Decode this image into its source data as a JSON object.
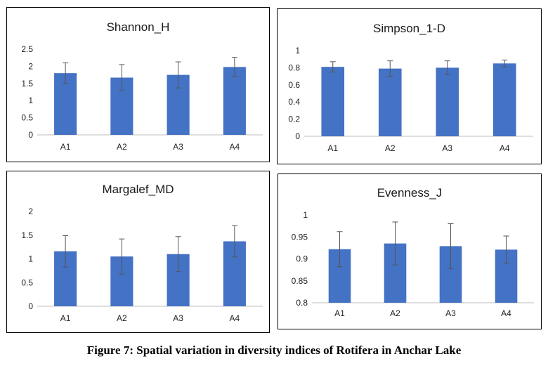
{
  "caption": "Figure 7: Spatial variation in diversity indices of Rotifera in Anchar Lake",
  "chart_data": [
    {
      "type": "bar",
      "title": "Shannon_H",
      "categories": [
        "A1",
        "A2",
        "A3",
        "A4"
      ],
      "values": [
        1.8,
        1.67,
        1.75,
        1.98
      ],
      "errors": [
        0.3,
        0.38,
        0.38,
        0.28
      ],
      "ylim": [
        0,
        2.5
      ],
      "yticks": [
        0,
        0.5,
        1,
        1.5,
        2,
        2.5
      ],
      "ytick_labels": [
        "0",
        "0.5",
        "1",
        "1.5",
        "2",
        "2.5"
      ],
      "bar_color": "#4472C4",
      "grid": false
    },
    {
      "type": "bar",
      "title": "Simpson_1-D",
      "categories": [
        "A1",
        "A2",
        "A3",
        "A4"
      ],
      "values": [
        0.81,
        0.79,
        0.8,
        0.85
      ],
      "errors": [
        0.06,
        0.09,
        0.08,
        0.04
      ],
      "ylim": [
        0,
        1
      ],
      "yticks": [
        0,
        0.2,
        0.4,
        0.6,
        0.8,
        1
      ],
      "ytick_labels": [
        "0",
        "0.2",
        "0.4",
        "0.6",
        "0.8",
        "1"
      ],
      "bar_color": "#4472C4",
      "grid": false
    },
    {
      "type": "bar",
      "title": "Margalef_MD",
      "categories": [
        "A1",
        "A2",
        "A3",
        "A4"
      ],
      "values": [
        1.16,
        1.05,
        1.1,
        1.37
      ],
      "errors": [
        0.33,
        0.37,
        0.37,
        0.33
      ],
      "ylim": [
        0,
        2
      ],
      "yticks": [
        0,
        0.5,
        1,
        1.5,
        2
      ],
      "ytick_labels": [
        "0",
        "0.5",
        "1",
        "1.5",
        "2"
      ],
      "bar_color": "#4472C4",
      "grid": false
    },
    {
      "type": "bar",
      "title": "Evenness_J",
      "categories": [
        "A1",
        "A2",
        "A3",
        "A4"
      ],
      "values": [
        0.922,
        0.935,
        0.929,
        0.921
      ],
      "errors": [
        0.04,
        0.049,
        0.051,
        0.031
      ],
      "ylim": [
        0.8,
        1
      ],
      "yticks": [
        0.8,
        0.85,
        0.9,
        0.95,
        1
      ],
      "ytick_labels": [
        "0.8",
        "0.85",
        "0.9",
        "0.95",
        "1"
      ],
      "bar_color": "#4472C4",
      "grid": false
    }
  ]
}
